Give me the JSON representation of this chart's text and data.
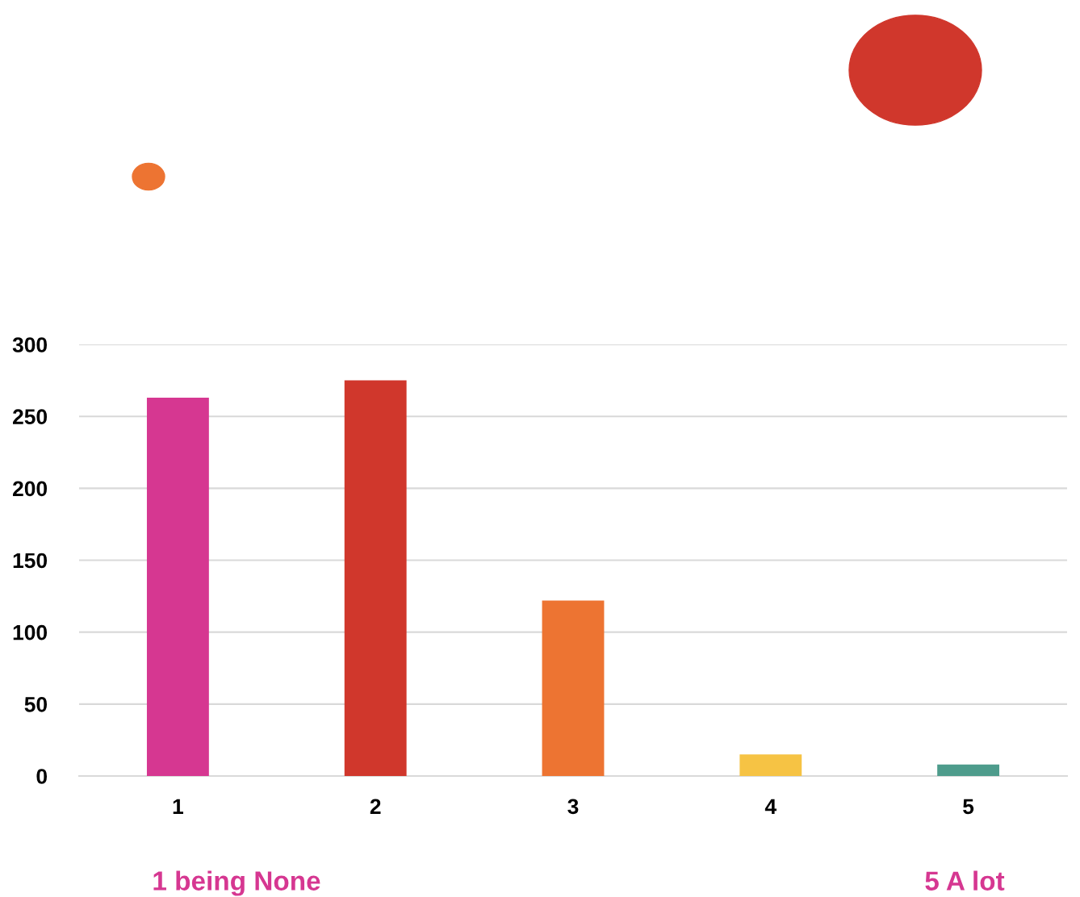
{
  "chart_data": {
    "type": "bar",
    "categories": [
      "1",
      "2",
      "3",
      "4",
      "5"
    ],
    "values": [
      263,
      275,
      122,
      15,
      8
    ],
    "colors": [
      "#d63791",
      "#d0372c",
      "#ed7432",
      "#f6c344",
      "#4e9c8c"
    ],
    "ylim": [
      0,
      300
    ],
    "yticks": [
      0,
      50,
      100,
      150,
      200,
      250,
      300
    ],
    "grid": "y",
    "annotations": [
      "1 being None",
      "5 A lot"
    ]
  }
}
